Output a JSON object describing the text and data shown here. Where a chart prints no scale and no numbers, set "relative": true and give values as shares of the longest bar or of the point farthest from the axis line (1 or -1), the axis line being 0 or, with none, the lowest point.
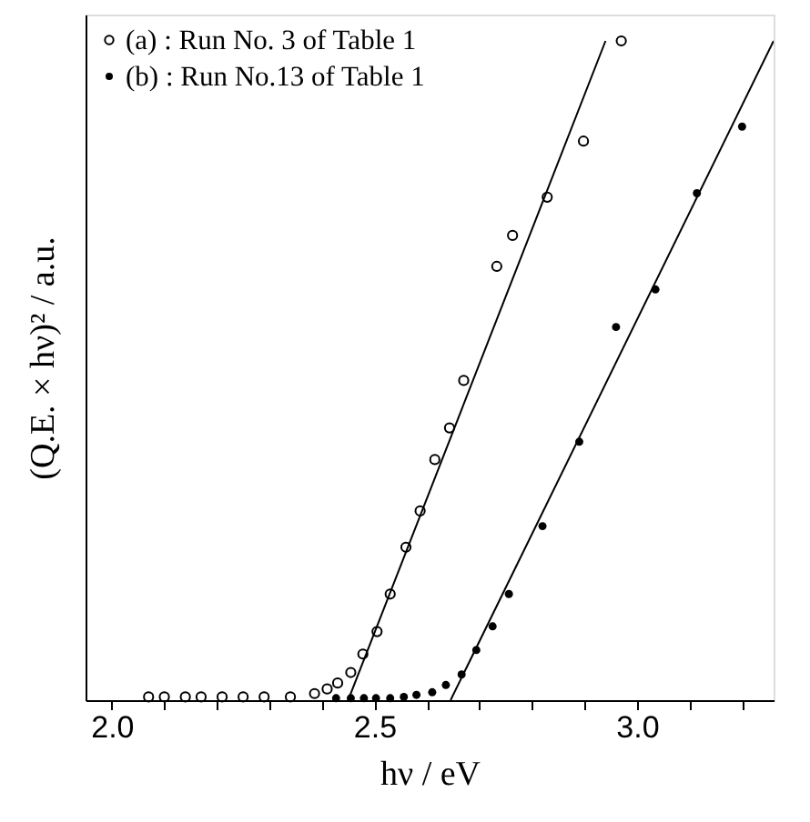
{
  "chart_data": {
    "type": "scatter",
    "xlabel": "hν / eV",
    "ylabel": "(Q.E. × hν)² / a.u.",
    "relative": true,
    "xlim": [
      1.95,
      3.26
    ],
    "xticks": [
      {
        "value": 2.0,
        "label": "2.0"
      },
      {
        "value": 2.1,
        "label": null
      },
      {
        "value": 2.2,
        "label": null
      },
      {
        "value": 2.3,
        "label": null
      },
      {
        "value": 2.4,
        "label": null
      },
      2.5,
      {
        "value": 2.6,
        "label": null
      },
      {
        "value": 2.7,
        "label": null
      },
      {
        "value": 2.8,
        "label": null
      },
      {
        "value": 2.9,
        "label": null
      },
      {
        "value": 3.0,
        "label": "3.0"
      },
      {
        "value": 3.1,
        "label": null
      },
      {
        "value": 3.2,
        "label": null
      }
    ],
    "grid": false,
    "legend": "top left",
    "marker": "circle",
    "series": [
      {
        "name": "(a) : Run No. 3  of Table 1",
        "color": "#000000",
        "x": [
          2.07,
          2.1,
          2.14,
          2.17,
          2.21,
          2.25,
          2.29,
          2.34,
          2.386,
          2.41,
          2.43,
          2.455,
          2.478,
          2.505,
          2.53,
          2.56,
          2.587,
          2.615,
          2.643,
          2.67,
          2.733,
          2.763,
          2.829,
          2.898,
          2.97
        ],
        "values": [
          0.005,
          0.005,
          0.005,
          0.005,
          0.005,
          0.005,
          0.005,
          0.005,
          0.01,
          0.017,
          0.026,
          0.042,
          0.07,
          0.104,
          0.161,
          0.232,
          0.287,
          0.365,
          0.413,
          0.485,
          0.658,
          0.705,
          0.763,
          0.848,
          1.0
        ]
      },
      {
        "name": "(b) : Run No.13 of Table 1",
        "color": "#000000",
        "x": [
          2.427,
          2.455,
          2.48,
          2.503,
          2.53,
          2.556,
          2.58,
          2.61,
          2.636,
          2.666,
          2.694,
          2.725,
          2.756,
          2.82,
          2.89,
          2.96,
          3.035,
          3.114,
          3.2
        ],
        "values": [
          0.003,
          0.003,
          0.003,
          0.003,
          0.003,
          0.005,
          0.008,
          0.012,
          0.023,
          0.039,
          0.076,
          0.112,
          0.161,
          0.264,
          0.392,
          0.566,
          0.623,
          0.769,
          0.87
        ]
      },
      {
        "type": "line",
        "color": "#000000",
        "line_style": "solid",
        "marker": "none",
        "x": [
          2.45,
          2.94
        ],
        "values": [
          0,
          1.0
        ]
      },
      {
        "type": "line",
        "color": "#000000",
        "line_style": "solid",
        "marker": "none",
        "x": [
          2.645,
          3.26
        ],
        "values": [
          0,
          1.0
        ]
      }
    ]
  }
}
